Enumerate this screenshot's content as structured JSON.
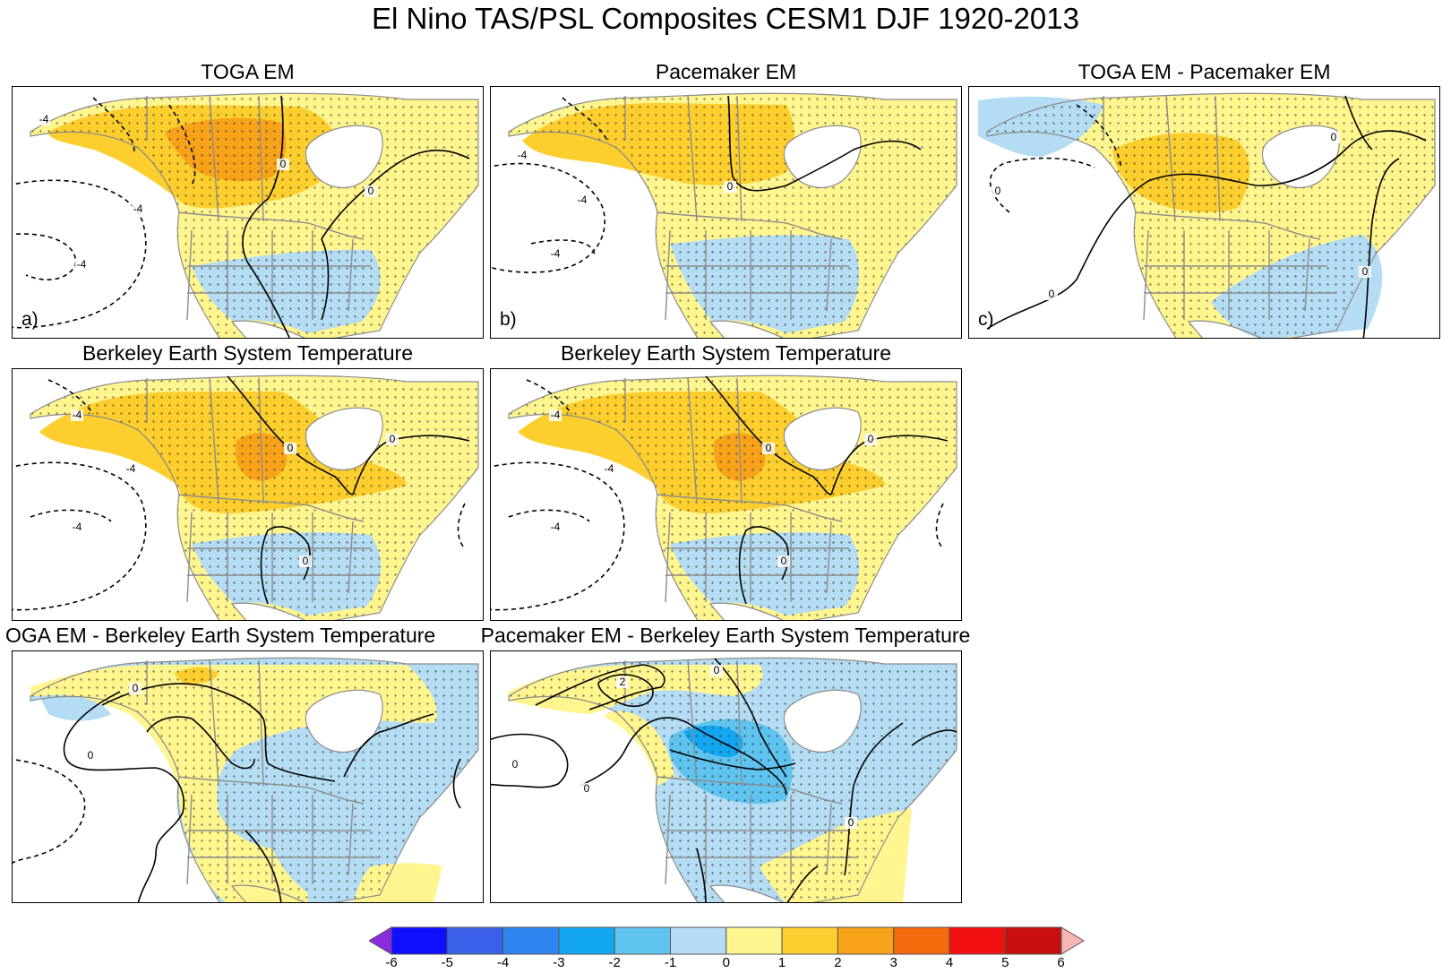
{
  "figure": {
    "title": "El Nino TAS/PSL Composites CESM1 DJF 1920-2013"
  },
  "panels": [
    {
      "title": "TOGA EM",
      "label": "a)",
      "pattern": "toga"
    },
    {
      "title": "Pacemaker EM",
      "label": "b)",
      "pattern": "pace"
    },
    {
      "title": "TOGA EM - Pacemaker EM",
      "label": "c)",
      "pattern": "diffc"
    },
    {
      "title": "Berkeley Earth System Temperature",
      "label": "",
      "pattern": "best"
    },
    {
      "title": "Berkeley Earth System Temperature",
      "label": "",
      "pattern": "best"
    },
    {
      "title": "OGA EM - Berkeley Earth System Temperature",
      "label": "",
      "pattern": "diffe"
    },
    {
      "title": "Pacemaker EM - Berkeley Earth System Temperature",
      "label": "",
      "pattern": "difff"
    }
  ],
  "contour_labels": {
    "minus4": "-4",
    "zero": "0",
    "plus2": "2"
  },
  "colorbar": {
    "ticks": [
      "-6",
      "-5",
      "-4",
      "-3",
      "-2",
      "-1",
      "0",
      "1",
      "2",
      "3",
      "4",
      "5",
      "6"
    ],
    "colors": [
      "#1010ff",
      "#3a5fe8",
      "#2f86f0",
      "#13a7f2",
      "#5fc3f0",
      "#b4dcf2",
      "#fff68f",
      "#fccf2e",
      "#f8a21a",
      "#f46a0c",
      "#f20f0f",
      "#c80e0e"
    ],
    "under_color": "#8a2be2",
    "over_color": "#f8b5b5"
  },
  "colors": {
    "land": "#ffffff",
    "border": "#8c8c8c"
  }
}
